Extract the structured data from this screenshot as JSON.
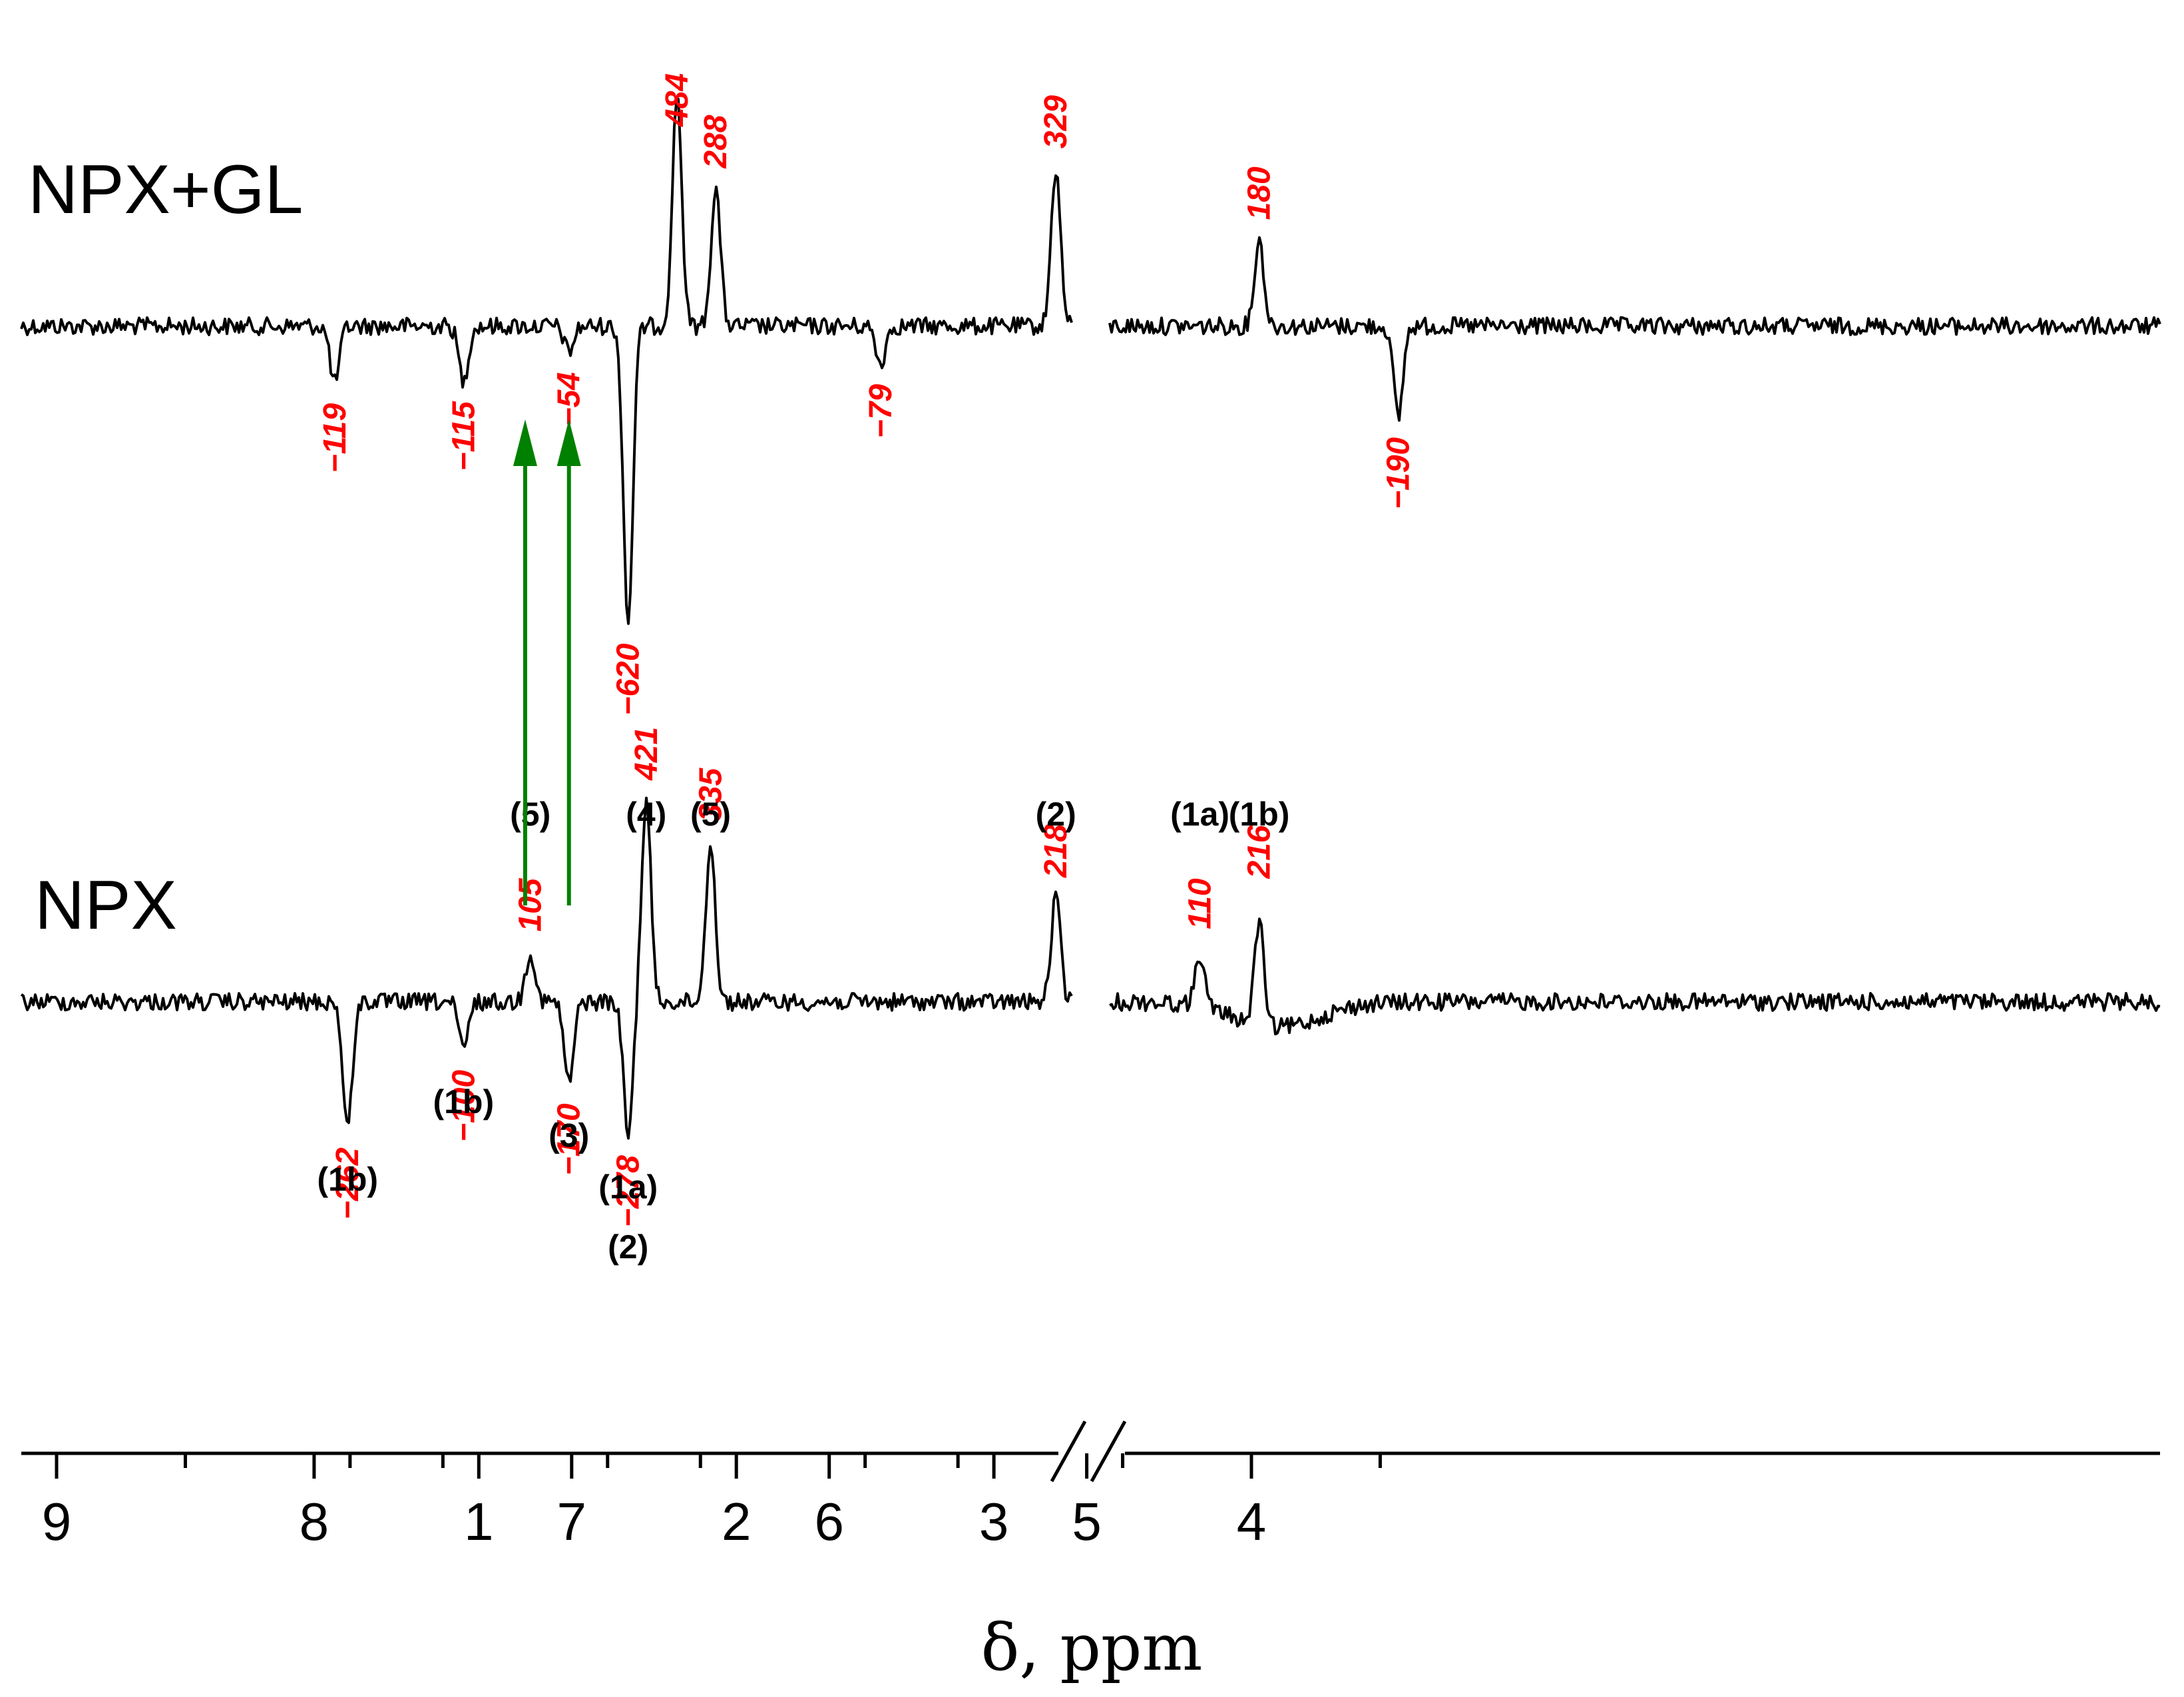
{
  "chart_data": {
    "type": "line",
    "title": "",
    "xlabel": "δ, ppm",
    "ylabel": "",
    "x_reversed": true,
    "axis_break": [
      5.0,
      4.65
    ],
    "x_segments": [
      [
        9.15,
        5.1
      ],
      [
        4.65,
        0.5
      ]
    ],
    "x_ticks": [
      "9",
      "8",
      "7",
      "6",
      "5",
      "4",
      "3",
      "2",
      "1"
    ],
    "grid": false,
    "legend": "none",
    "colors": {
      "trace": "#000000",
      "intensity": "#ff0000",
      "arrow": "#008000"
    },
    "series": [
      {
        "name": "NPX+GL",
        "peaks": [
          {
            "x": 7.92,
            "value": -119
          },
          {
            "x": 7.42,
            "value": -115
          },
          {
            "x": 5.12,
            "value": 329
          },
          {
            "x": 4.57,
            "value": -190
          },
          {
            "x": 4.03,
            "value": 180
          },
          {
            "x": 2.56,
            "value": -79
          },
          {
            "x": 1.92,
            "value": 288
          },
          {
            "x": 1.77,
            "value": 484
          },
          {
            "x": 1.58,
            "value": -620
          },
          {
            "x": 1.35,
            "value": -54
          }
        ]
      },
      {
        "name": "NPX",
        "peaks": [
          {
            "x": 7.87,
            "value": -262,
            "label": "(1b)"
          },
          {
            "x": 7.42,
            "value": -100,
            "label": "(1b)"
          },
          {
            "x": 5.12,
            "value": 218,
            "label": "(2)"
          },
          {
            "x": 4.03,
            "value": 216,
            "label": "(1b)"
          },
          {
            "x": 3.8,
            "value": 110,
            "label": "(1a)"
          },
          {
            "x": 1.9,
            "value": 335,
            "label": "(5)"
          },
          {
            "x": 1.65,
            "value": 421,
            "label": "(4)"
          },
          {
            "x": 1.58,
            "value": -278,
            "label": "(1a)\n(2)"
          },
          {
            "x": 1.35,
            "value": -170,
            "label": "(3)"
          },
          {
            "x": 1.2,
            "value": 105,
            "label": "(5)"
          }
        ]
      }
    ],
    "arrows_x": [
      1.35,
      1.18
    ]
  }
}
